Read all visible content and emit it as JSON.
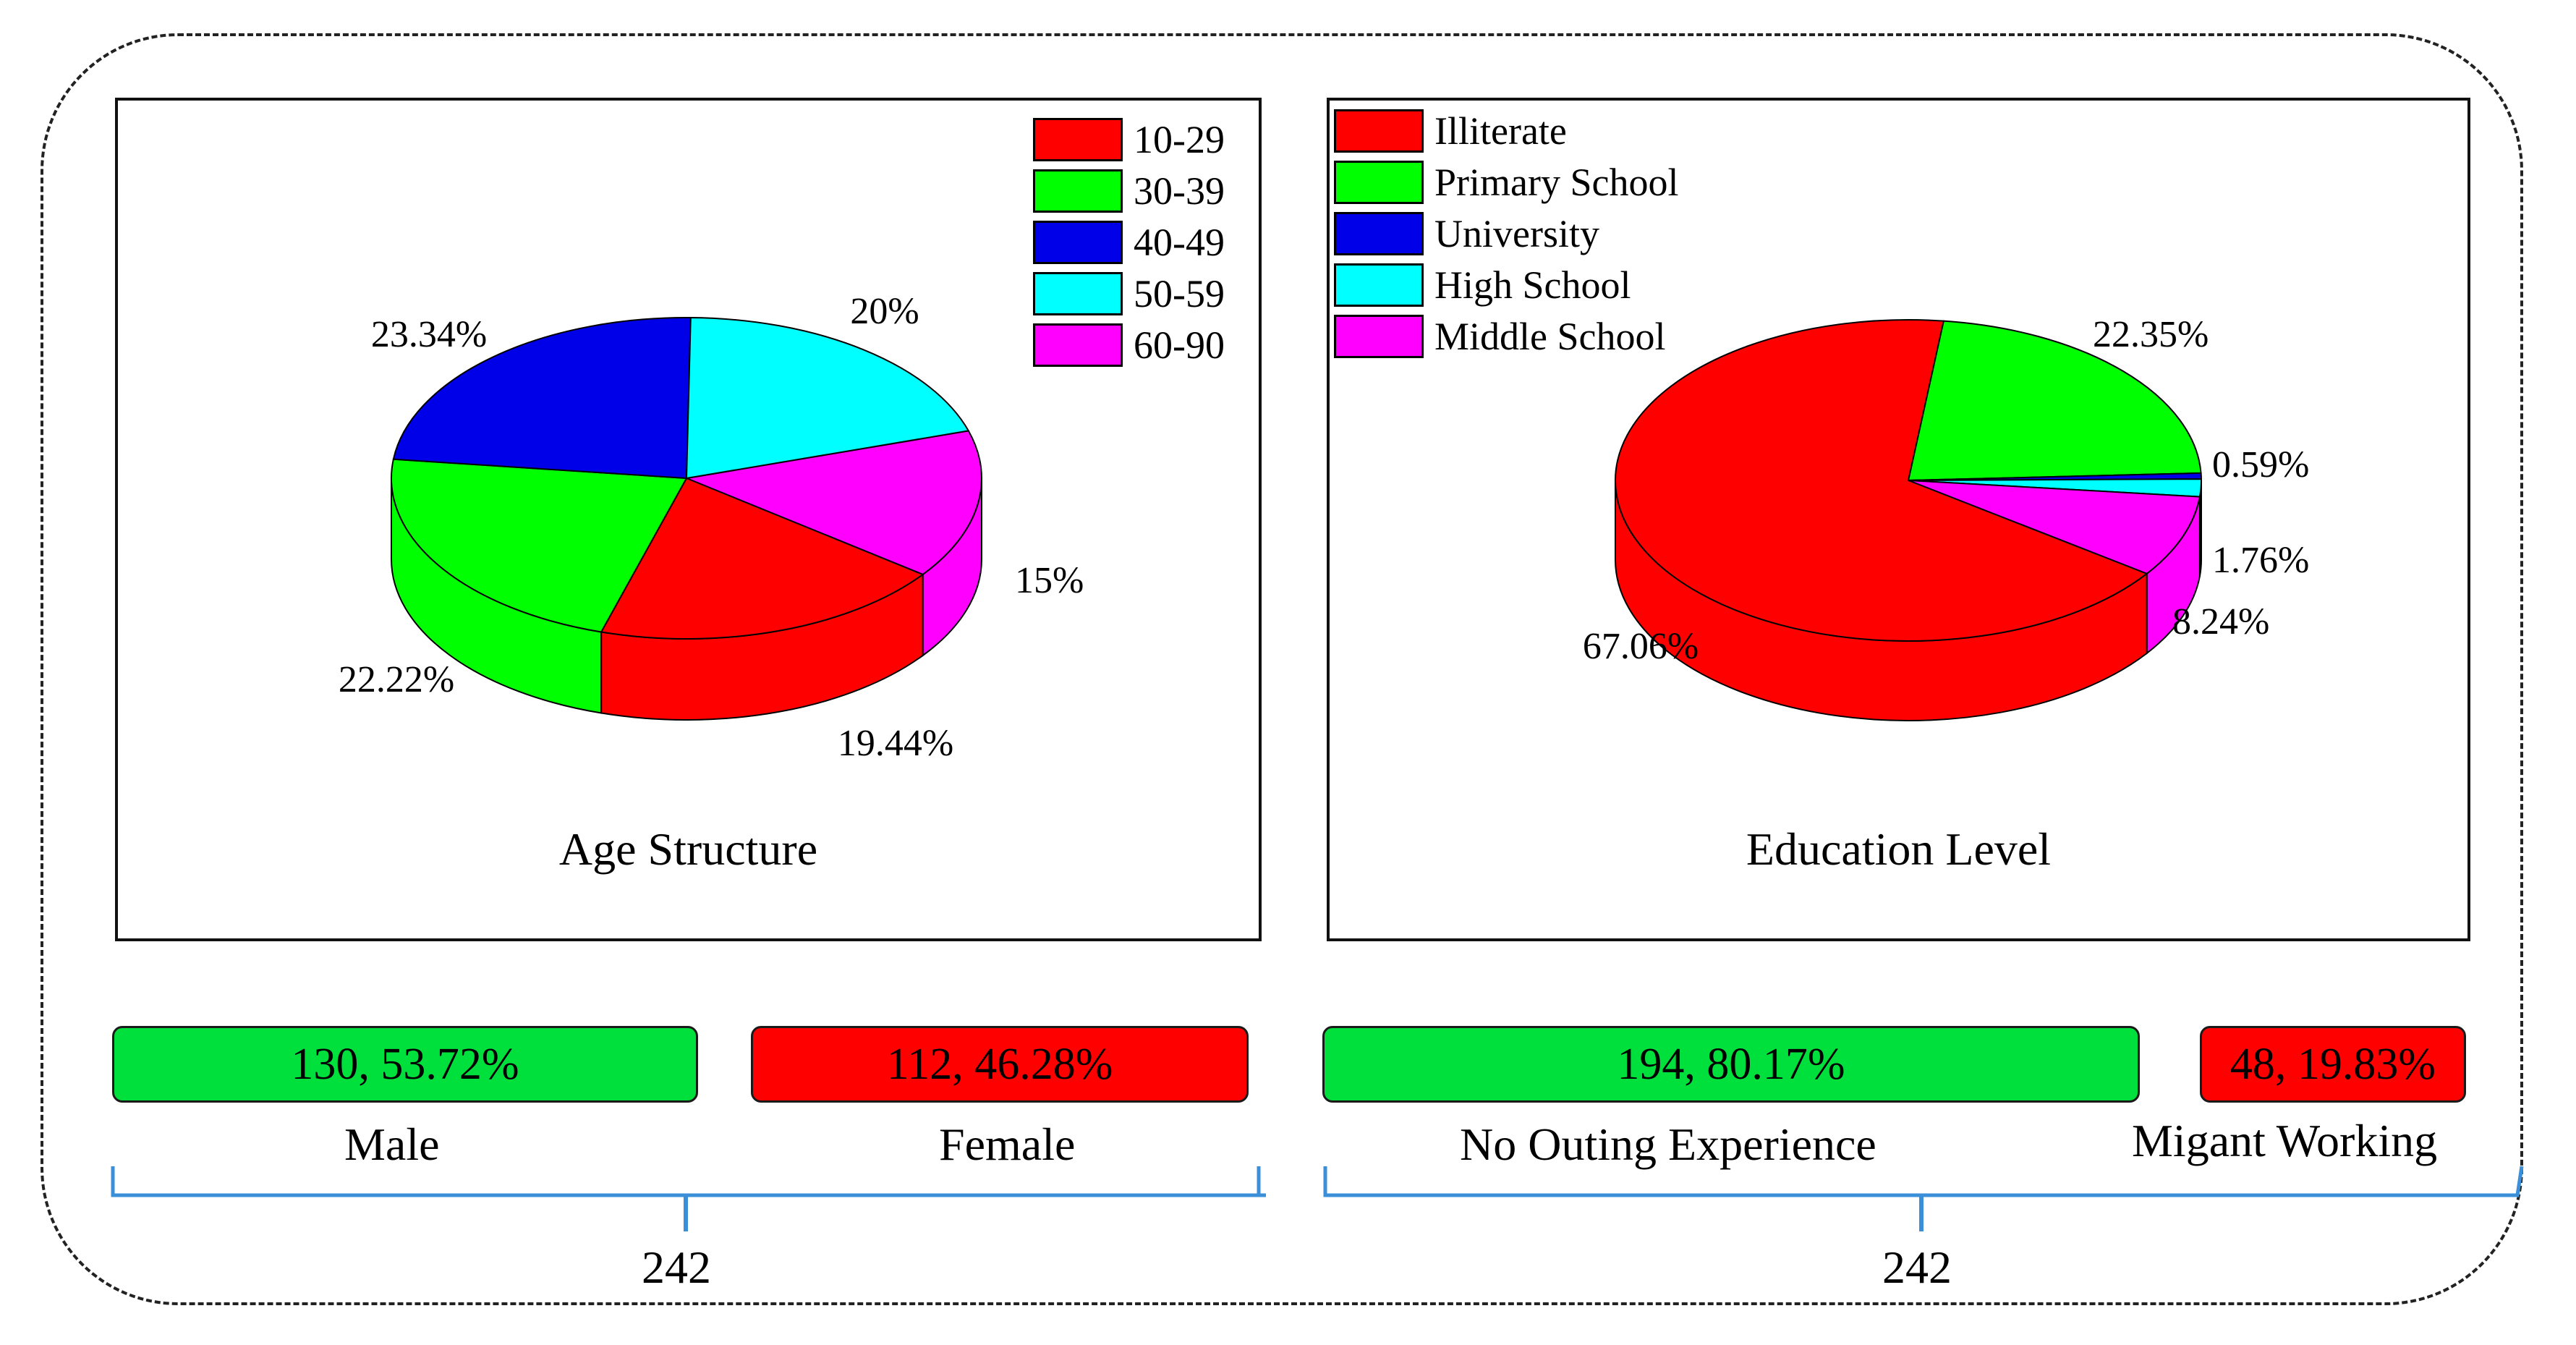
{
  "colors": {
    "red": "#ff0000",
    "green": "#00ff00",
    "blue": "#0000e8",
    "cyan": "#00ffff",
    "magenta": "#ff00ff",
    "bar_green": "#00e03c",
    "bar_red": "#ff0000",
    "brace": "#3a8fd8"
  },
  "chart_data": [
    {
      "type": "pie",
      "title": "Age Structure",
      "legend": [
        {
          "label": "10-29",
          "color": "#ff0000"
        },
        {
          "label": "30-39",
          "color": "#00ff00"
        },
        {
          "label": "40-49",
          "color": "#0000e8"
        },
        {
          "label": "50-59",
          "color": "#00ffff"
        },
        {
          "label": "60-90",
          "color": "#ff00ff"
        }
      ],
      "slices": [
        {
          "category": "60-90",
          "value": 15,
          "label": "15%",
          "color": "#ff00ff"
        },
        {
          "category": "10-29",
          "value": 19.44,
          "label": "19.44%",
          "color": "#ff0000"
        },
        {
          "category": "30-39",
          "value": 22.22,
          "label": "22.22%",
          "color": "#00ff00"
        },
        {
          "category": "40-49",
          "value": 23.34,
          "label": "23.34%",
          "color": "#0000e8"
        },
        {
          "category": "50-59",
          "value": 20,
          "label": "20%",
          "color": "#00ffff"
        }
      ]
    },
    {
      "type": "pie",
      "title": "Education Level",
      "legend": [
        {
          "label": "Illiterate",
          "color": "#ff0000"
        },
        {
          "label": "Primary School",
          "color": "#00ff00"
        },
        {
          "label": "University",
          "color": "#0000e8"
        },
        {
          "label": "High School",
          "color": "#00ffff"
        },
        {
          "label": "Middle School",
          "color": "#ff00ff"
        }
      ],
      "slices": [
        {
          "category": "Primary School",
          "value": 22.35,
          "label": "22.35%",
          "color": "#00ff00"
        },
        {
          "category": "University",
          "value": 0.59,
          "label": "0.59%",
          "color": "#0000e8"
        },
        {
          "category": "High School",
          "value": 1.76,
          "label": "1.76%",
          "color": "#00ffff"
        },
        {
          "category": "Middle School",
          "value": 8.24,
          "label": "8.24%",
          "color": "#ff00ff"
        },
        {
          "category": "Illiterate",
          "value": 67.06,
          "label": "67.06%",
          "color": "#ff0000"
        }
      ]
    }
  ],
  "summary": {
    "gender": {
      "male": {
        "bar_text": "130, 53.72%",
        "label": "Male",
        "count": 130,
        "percent": 53.72
      },
      "female": {
        "bar_text": "112, 46.28%",
        "label": "Female",
        "count": 112,
        "percent": 46.28
      },
      "total": "242"
    },
    "work": {
      "no_outing": {
        "bar_text": "194, 80.17%",
        "label": "No Outing Experience",
        "count": 194,
        "percent": 80.17
      },
      "migrant": {
        "bar_text": "48, 19.83%",
        "label": "Migant Working",
        "count": 48,
        "percent": 19.83
      },
      "total": "242"
    }
  }
}
